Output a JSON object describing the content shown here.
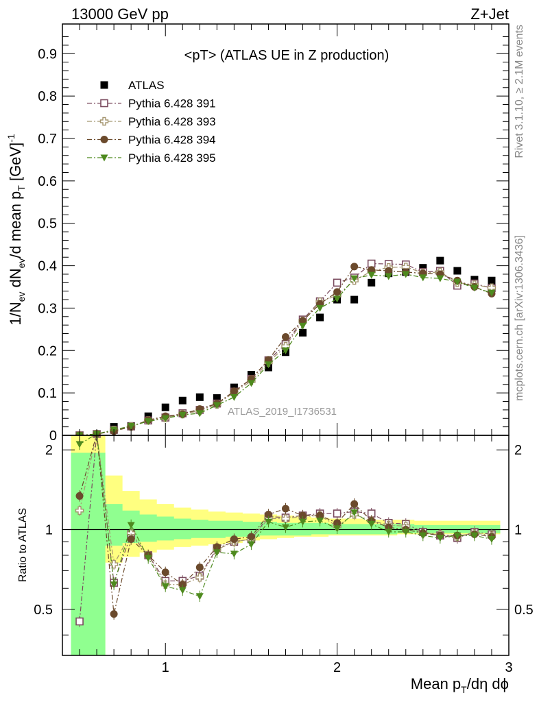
{
  "header": {
    "energy_label": "13000 GeV pp",
    "process_label": "Z+Jet"
  },
  "side_labels": {
    "rivet": "Rivet 3.1.10, ≥ 2.1M events",
    "mcplots": "mcplots.cern.ch [arXiv:1306.3436]"
  },
  "watermark": "ATLAS_2019_I1736531",
  "colors": {
    "atlas": "#000000",
    "p391": "#7a4a5e",
    "p393": "#a59670",
    "p394": "#6b4a2c",
    "p395": "#4e8a1e",
    "band_yellow": "#ffff80",
    "band_green": "#90ff90"
  },
  "chart_data": [
    {
      "type": "scatter",
      "panel": "main",
      "title": "<pT> (ATLAS UE in Z production)",
      "ylabel": "1/N_ev dN_ev/d mean p_T [GeV]^-1",
      "xlim": [
        0.4,
        3.0
      ],
      "ylim": [
        0,
        0.97
      ],
      "yticks": [
        0,
        0.1,
        0.2,
        0.3,
        0.4,
        0.5,
        0.6,
        0.7,
        0.8,
        0.9
      ],
      "ytick_labels": [
        "0",
        "0.1",
        "0.2",
        "0.3",
        "0.4",
        "0.5",
        "0.6",
        "0.7",
        "0.8",
        "0.9"
      ],
      "legend_position": "top-left",
      "x": [
        0.5,
        0.6,
        0.7,
        0.8,
        0.9,
        1.0,
        1.1,
        1.2,
        1.3,
        1.4,
        1.5,
        1.6,
        1.7,
        1.8,
        1.9,
        2.0,
        2.1,
        2.2,
        2.3,
        2.4,
        2.5,
        2.6,
        2.7,
        2.8,
        2.9
      ],
      "series": [
        {
          "name": "ATLAS",
          "key": "atlas",
          "marker": "square-filled",
          "line": "none",
          "values": [
            0.0,
            0.003,
            0.02,
            0.022,
            0.045,
            0.066,
            0.082,
            0.09,
            0.088,
            0.113,
            0.143,
            0.16,
            0.196,
            0.242,
            0.278,
            0.32,
            0.32,
            0.36,
            0.382,
            0.385,
            0.395,
            0.412,
            0.388,
            0.367,
            0.365
          ]
        },
        {
          "name": "Pythia 6.428 391",
          "key": "p391",
          "marker": "square-open",
          "line": "dashdot",
          "values": [
            0.0,
            0.003,
            0.013,
            0.021,
            0.035,
            0.042,
            0.052,
            0.06,
            0.075,
            0.103,
            0.133,
            0.177,
            0.215,
            0.273,
            0.316,
            0.36,
            0.372,
            0.405,
            0.404,
            0.403,
            0.385,
            0.388,
            0.353,
            0.358,
            0.347
          ]
        },
        {
          "name": "Pythia 6.428 393",
          "key": "p393",
          "marker": "cross-open",
          "line": "dashdot",
          "values": [
            0.0,
            0.003,
            0.012,
            0.021,
            0.035,
            0.041,
            0.05,
            0.058,
            0.073,
            0.101,
            0.128,
            0.172,
            0.21,
            0.27,
            0.315,
            0.33,
            0.365,
            0.387,
            0.396,
            0.397,
            0.383,
            0.385,
            0.36,
            0.355,
            0.348
          ]
        },
        {
          "name": "Pythia 6.428 394",
          "key": "p394",
          "marker": "circle-filled",
          "line": "dashdot",
          "values": [
            0.0,
            0.003,
            0.01,
            0.02,
            0.036,
            0.045,
            0.05,
            0.062,
            0.075,
            0.104,
            0.133,
            0.178,
            0.232,
            0.27,
            0.31,
            0.338,
            0.398,
            0.39,
            0.388,
            0.385,
            0.382,
            0.38,
            0.365,
            0.35,
            0.334
          ]
        },
        {
          "name": "Pythia 6.428 395",
          "key": "p395",
          "marker": "triangle-down-filled",
          "line": "dashdot",
          "values": [
            0.0,
            0.003,
            0.013,
            0.022,
            0.033,
            0.04,
            0.048,
            0.052,
            0.071,
            0.09,
            0.123,
            0.167,
            0.2,
            0.258,
            0.3,
            0.322,
            0.37,
            0.378,
            0.375,
            0.38,
            0.372,
            0.37,
            0.362,
            0.348,
            0.336
          ]
        }
      ]
    },
    {
      "type": "scatter",
      "panel": "ratio",
      "ylabel": "Ratio to ATLAS",
      "xlabel": "Mean p_T/dη dϕ",
      "xlim": [
        0.4,
        3.0
      ],
      "ylim": [
        0.335,
        2.27
      ],
      "log_scale": true,
      "yticks": [
        0.5,
        1,
        2
      ],
      "ytick_labels": [
        "0.5",
        "1",
        "2"
      ],
      "xticks": [
        1,
        2,
        3
      ],
      "xtick_labels": [
        "1",
        "2",
        "3"
      ],
      "reference_line": 1,
      "x": [
        0.5,
        0.6,
        0.7,
        0.8,
        0.9,
        1.0,
        1.1,
        1.2,
        1.3,
        1.4,
        1.5,
        1.6,
        1.7,
        1.8,
        1.9,
        2.0,
        2.1,
        2.2,
        2.3,
        2.4,
        2.5,
        2.6,
        2.7,
        2.8,
        2.9
      ],
      "band_yellow": {
        "lower": [
          0.33,
          0.33,
          0.75,
          0.79,
          0.82,
          0.84,
          0.86,
          0.87,
          0.88,
          0.89,
          0.91,
          0.92,
          0.93,
          0.94,
          0.94,
          0.95,
          0.95,
          0.95,
          0.95,
          0.96,
          0.96,
          0.96,
          0.96,
          0.96,
          0.96
        ],
        "upper": [
          2.3,
          2.3,
          1.6,
          1.4,
          1.3,
          1.25,
          1.21,
          1.19,
          1.17,
          1.16,
          1.15,
          1.14,
          1.13,
          1.12,
          1.11,
          1.1,
          1.1,
          1.09,
          1.09,
          1.09,
          1.08,
          1.08,
          1.08,
          1.08,
          1.08
        ]
      },
      "band_green": {
        "lower": [
          0.33,
          0.33,
          0.87,
          0.89,
          0.9,
          0.91,
          0.92,
          0.93,
          0.93,
          0.94,
          0.94,
          0.95,
          0.95,
          0.95,
          0.96,
          0.96,
          0.96,
          0.96,
          0.96,
          0.97,
          0.97,
          0.97,
          0.97,
          0.97,
          0.97
        ],
        "upper": [
          1.95,
          1.95,
          1.25,
          1.18,
          1.14,
          1.12,
          1.1,
          1.09,
          1.08,
          1.08,
          1.07,
          1.07,
          1.06,
          1.06,
          1.06,
          1.05,
          1.05,
          1.05,
          1.05,
          1.05,
          1.04,
          1.04,
          1.04,
          1.04,
          1.04
        ]
      },
      "series": [
        {
          "name": "Pythia 6.428 391",
          "key": "p391",
          "marker": "square-open",
          "values": [
            0.45,
            2.3,
            0.63,
            0.96,
            0.8,
            0.64,
            0.64,
            0.67,
            0.85,
            0.9,
            0.92,
            1.12,
            1.11,
            1.13,
            1.15,
            1.15,
            1.17,
            1.15,
            1.06,
            1.05,
            0.98,
            0.95,
            0.93,
            0.98,
            0.96
          ]
        },
        {
          "name": "Pythia 6.428 393",
          "key": "p393",
          "marker": "cross-open",
          "values": [
            1.18,
            2.3,
            0.74,
            0.97,
            0.8,
            0.62,
            0.62,
            0.66,
            0.84,
            0.9,
            0.92,
            1.1,
            1.1,
            1.12,
            1.13,
            1.03,
            1.14,
            1.08,
            1.04,
            1.03,
            0.97,
            0.96,
            0.94,
            0.97,
            0.95
          ]
        },
        {
          "name": "Pythia 6.428 394",
          "key": "p394",
          "marker": "circle-filled",
          "values": [
            1.34,
            2.3,
            0.48,
            0.92,
            0.8,
            0.69,
            0.62,
            0.72,
            0.86,
            0.92,
            0.94,
            1.14,
            1.2,
            1.13,
            1.13,
            1.06,
            1.25,
            1.08,
            1.02,
            1.0,
            0.97,
            0.95,
            0.95,
            0.96,
            0.94
          ]
        },
        {
          "name": "Pythia 6.428 395",
          "key": "p395",
          "marker": "triangle-down-filled",
          "values": [
            2.1,
            2.3,
            0.62,
            1.04,
            0.78,
            0.61,
            0.59,
            0.56,
            0.82,
            0.81,
            0.88,
            1.07,
            1.02,
            1.07,
            1.08,
            1.01,
            1.16,
            1.05,
            0.98,
            0.98,
            0.95,
            0.93,
            0.95,
            0.95,
            0.92
          ]
        }
      ]
    }
  ]
}
